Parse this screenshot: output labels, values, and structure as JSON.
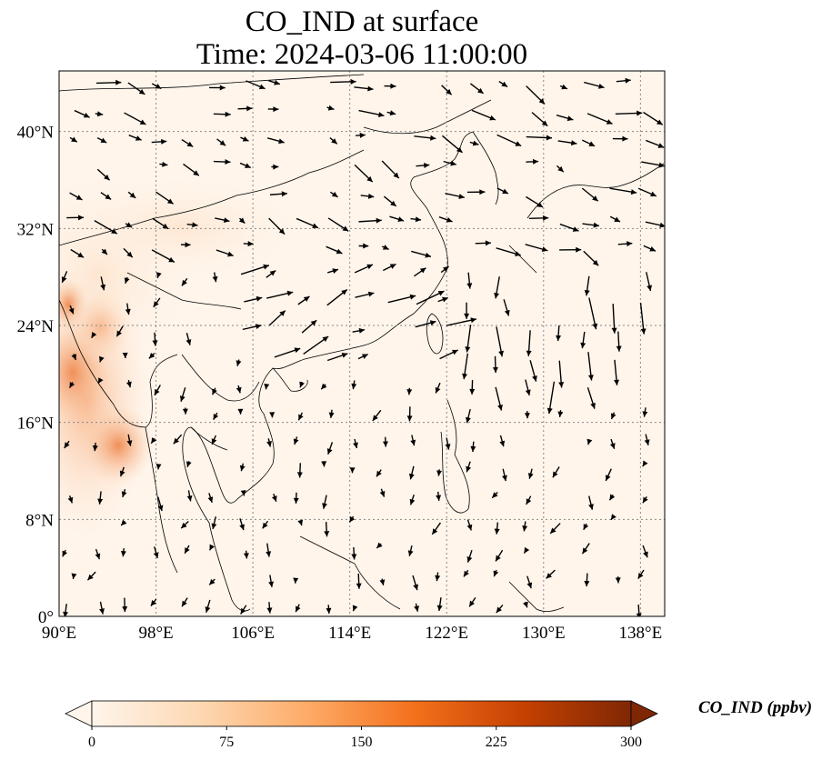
{
  "title_line1": "CO_IND at surface",
  "title_line2": "Time: 2024-03-06 11:00:00",
  "map": {
    "lon_range": [
      90,
      140
    ],
    "lat_range": [
      0,
      45
    ],
    "lon_ticks": [
      {
        "value": 90,
        "label": "90°E"
      },
      {
        "value": 98,
        "label": "98°E"
      },
      {
        "value": 106,
        "label": "106°E"
      },
      {
        "value": 114,
        "label": "114°E"
      },
      {
        "value": 122,
        "label": "122°E"
      },
      {
        "value": 130,
        "label": "130°E"
      },
      {
        "value": 138,
        "label": "138°E"
      }
    ],
    "lat_ticks": [
      {
        "value": 0,
        "label": "0°"
      },
      {
        "value": 8,
        "label": "8°N"
      },
      {
        "value": 16,
        "label": "16°N"
      },
      {
        "value": 24,
        "label": "24°N"
      },
      {
        "value": 32,
        "label": "32°N"
      },
      {
        "value": 40,
        "label": "40°N"
      }
    ],
    "gridlines": true,
    "background_color": "#fff5eb",
    "coastline_color": "#000000"
  },
  "colorbar": {
    "label": "CO_IND (ppbv)",
    "min": 0,
    "max": 300,
    "ticks": [
      {
        "value": 0,
        "label": "0"
      },
      {
        "value": 75,
        "label": "75"
      },
      {
        "value": 150,
        "label": "150"
      },
      {
        "value": 225,
        "label": "225"
      },
      {
        "value": 300,
        "label": "300"
      }
    ],
    "extend": "both",
    "colors": [
      "#fff5eb",
      "#fdd8b3",
      "#fdab67",
      "#f3701b",
      "#c54102",
      "#7f2704"
    ]
  }
}
